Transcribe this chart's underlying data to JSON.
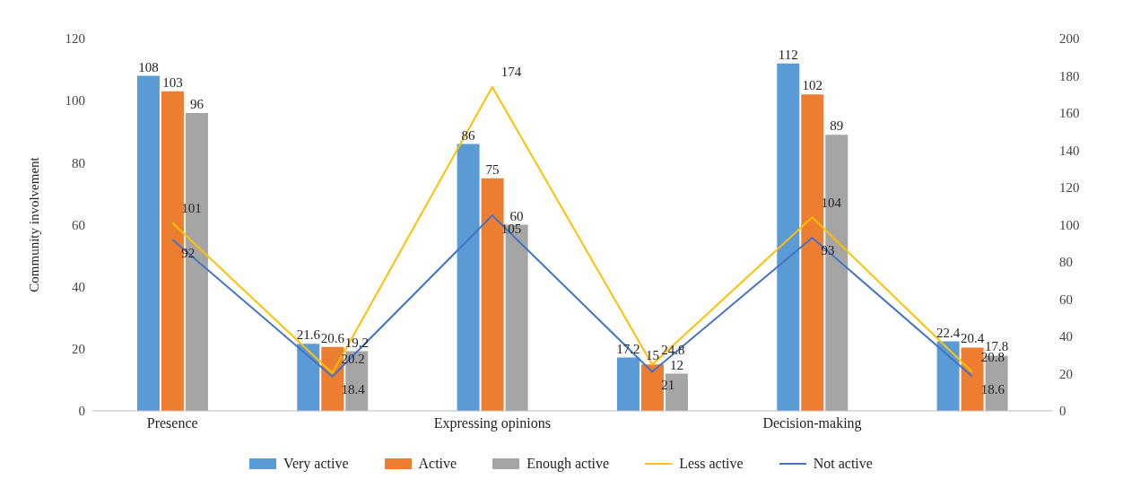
{
  "chart_data": {
    "type": "bar",
    "ylabel": "Community involvement",
    "categories": [
      "Presence",
      null,
      "Expressing opinions",
      null,
      "Decision-making",
      null
    ],
    "series": [
      {
        "name": "Very active",
        "color": "#5b9bd5",
        "values": [
          108,
          21.6,
          86,
          17.2,
          112,
          22.4
        ]
      },
      {
        "name": "Active",
        "color": "#ed7d31",
        "values": [
          103,
          20.6,
          75,
          15,
          102,
          20.4
        ]
      },
      {
        "name": "Enough active",
        "color": "#a5a5a5",
        "values": [
          96,
          19.2,
          60,
          12,
          89,
          17.8
        ]
      },
      {
        "name": "Less active",
        "type": "line",
        "axis": "y2",
        "color": "#ffc000",
        "values": [
          101,
          20.2,
          174,
          24.8,
          104,
          20.8
        ]
      },
      {
        "name": "Not active",
        "type": "line",
        "axis": "y2",
        "color": "#4472c4",
        "values": [
          92,
          18.4,
          105,
          21,
          93,
          18.6
        ]
      }
    ],
    "ylim": [
      0,
      120
    ],
    "yticks": [
      0,
      20,
      40,
      60,
      80,
      100,
      120
    ],
    "y2lim": [
      0,
      200
    ],
    "y2ticks": [
      0,
      20,
      40,
      60,
      80,
      100,
      120,
      140,
      160,
      180,
      200
    ],
    "data_labels": true,
    "legend": "bottom",
    "grid": false,
    "marker": "none"
  }
}
